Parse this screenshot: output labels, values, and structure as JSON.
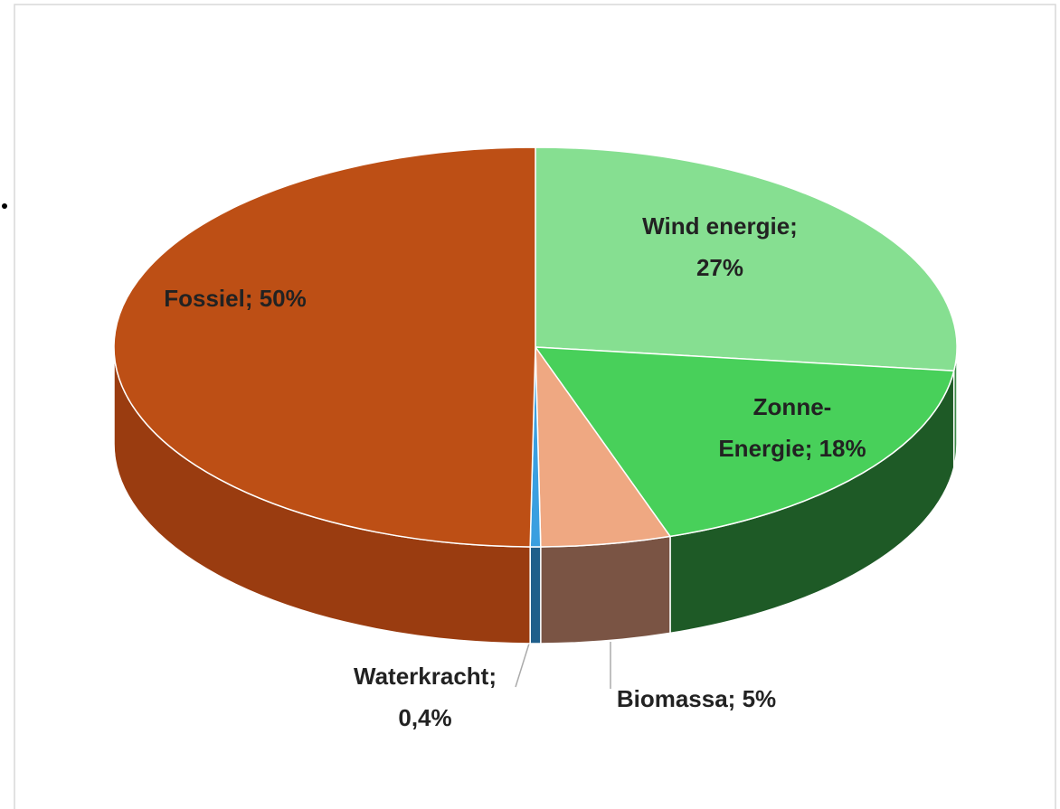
{
  "chart_data": {
    "type": "pie3d",
    "values": [
      27,
      18,
      5,
      0.4,
      50
    ],
    "value_labels": [
      [
        "Wind energie;",
        "27%"
      ],
      [
        "Zonne-",
        "Energie; 18%"
      ],
      [
        "Biomassa; 5%"
      ],
      [
        "Waterkracht;",
        "0,4%"
      ],
      [
        "Fossiel; 50%"
      ]
    ],
    "colors": [
      "#86df91",
      "#48d05a",
      "#efa882",
      "#3a9fe0",
      "#bd4f15"
    ],
    "side_colors": [
      "#3d8a48",
      "#1e5a26",
      "#7a5444",
      "#1f5f8b",
      "#9a3c10"
    ]
  }
}
